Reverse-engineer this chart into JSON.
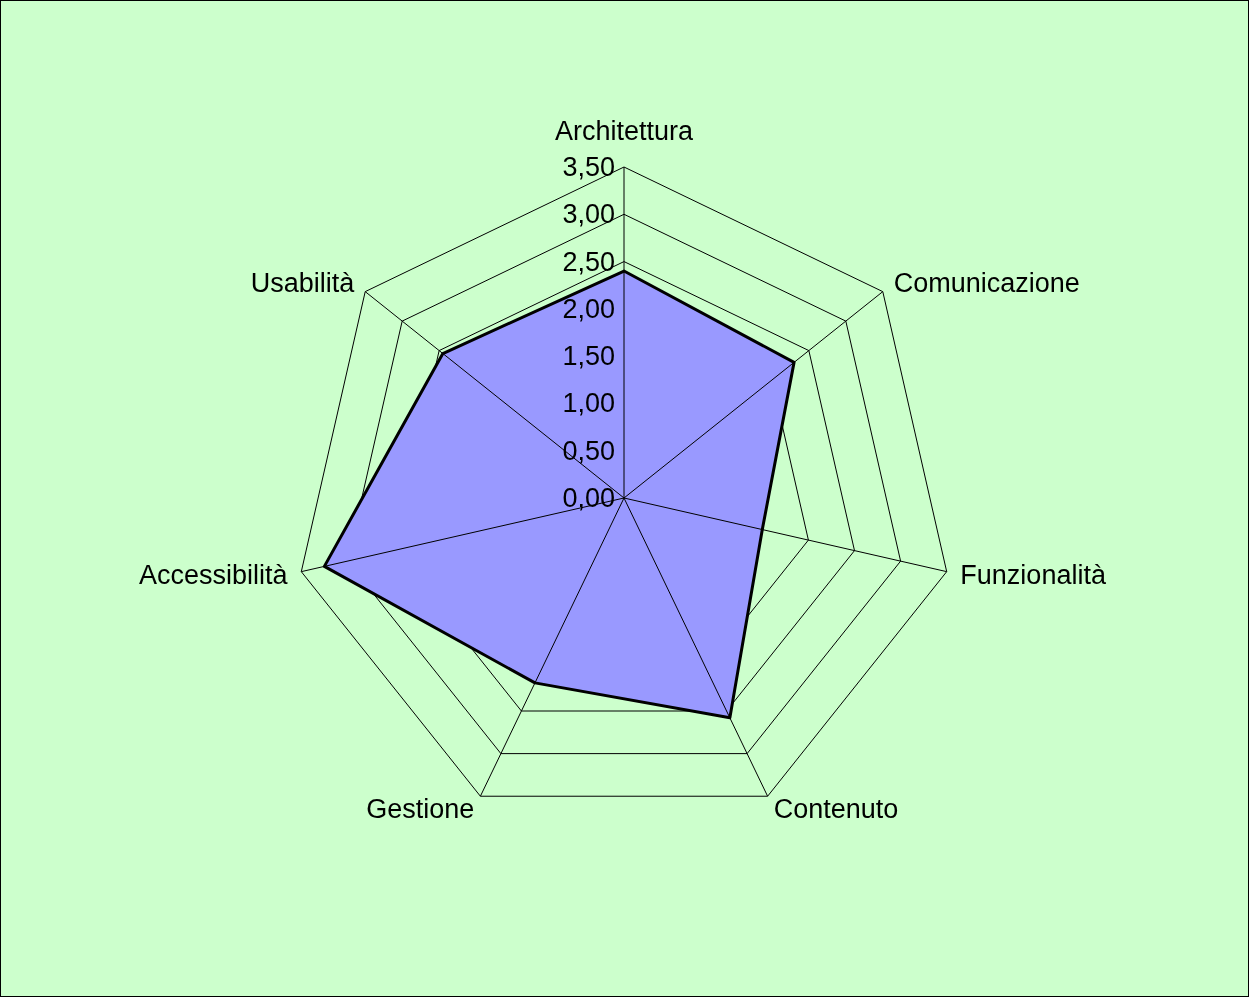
{
  "chart_data": {
    "type": "radar",
    "categories": [
      "Architettura",
      "Comunicazione",
      "Funzionalità",
      "Contenuto",
      "Gestione",
      "Accessibilità",
      "Usabilità"
    ],
    "series": [
      {
        "color": "#9999ff",
        "values": [
          2.4,
          2.3,
          1.5,
          2.58,
          2.17,
          3.25,
          2.45
        ]
      }
    ],
    "ylim": [
      0,
      3.5
    ],
    "yticks": [
      {
        "value": 0,
        "label": "0,00"
      },
      {
        "value": 0.5,
        "label": "0,50"
      },
      {
        "value": 1,
        "label": "1,00"
      },
      {
        "value": 1.5,
        "label": "1,50"
      },
      {
        "value": 2,
        "label": "2,00"
      },
      {
        "value": 2.5,
        "label": "2,50"
      },
      {
        "value": 3,
        "label": "3,00"
      },
      {
        "value": 3.5,
        "label": "3,50"
      }
    ],
    "grid": true
  }
}
